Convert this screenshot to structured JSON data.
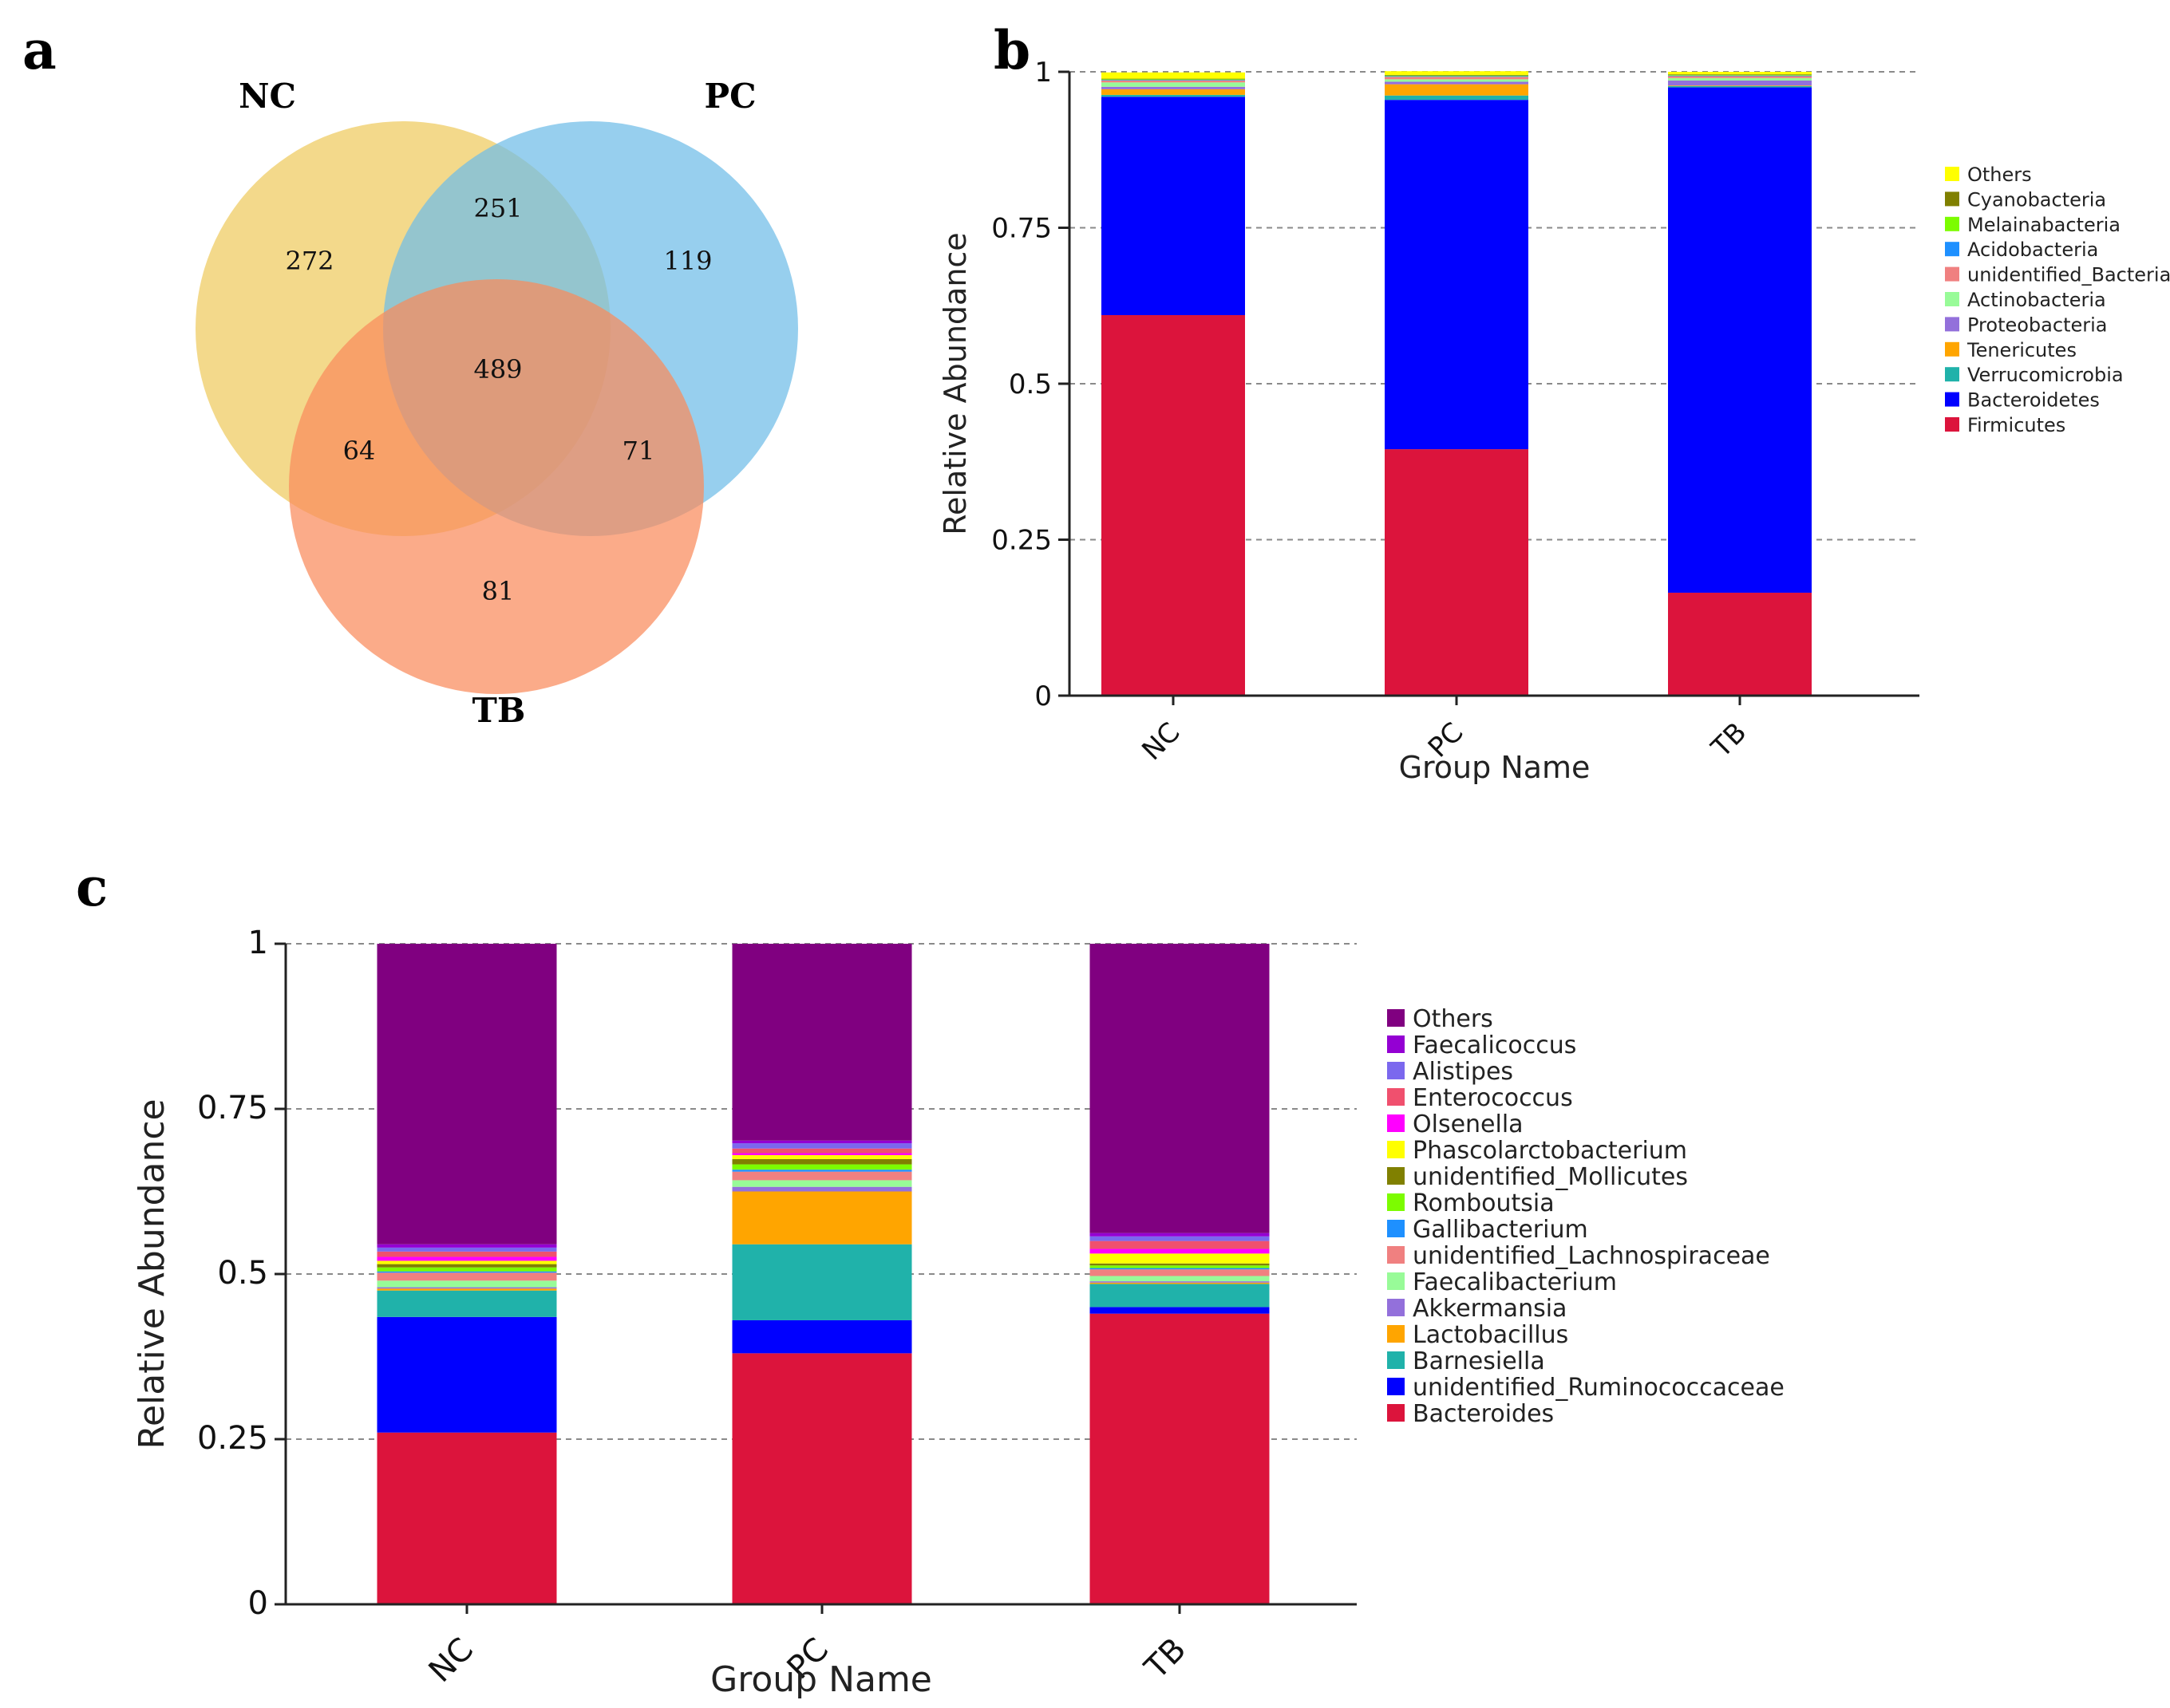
{
  "panels": {
    "a": "a",
    "b": "b",
    "c": "c"
  },
  "venn": {
    "sets": [
      {
        "name": "NC",
        "color": "#EFCB5E"
      },
      {
        "name": "PC",
        "color": "#6FBDE8"
      },
      {
        "name": "TB",
        "color": "#F98A5B"
      }
    ],
    "counts": {
      "nc_only": "272",
      "pc_only": "119",
      "tb_only": "81",
      "nc_pc": "251",
      "nc_tb": "64",
      "pc_tb": "71",
      "all": "489"
    }
  },
  "chart_data": [
    {
      "id": "b",
      "type": "bar",
      "stacked": true,
      "xlabel": "Group Name",
      "ylabel": "Relative Abundance",
      "ylim": [
        0,
        1
      ],
      "yticks": [
        "0",
        "0.25",
        "0.5",
        "0.75",
        "1"
      ],
      "categories": [
        "NC",
        "PC",
        "TB"
      ],
      "legend_position": "right",
      "grid": "dashed horizontal",
      "series": [
        {
          "name": "Firmicutes",
          "color": "#DC143C",
          "values": [
            0.61,
            0.395,
            0.165
          ]
        },
        {
          "name": "Bacteroidetes",
          "color": "#0000FF",
          "values": [
            0.35,
            0.56,
            0.81
          ]
        },
        {
          "name": "Verrucomicrobia",
          "color": "#20B2AA",
          "values": [
            0.003,
            0.007,
            0.002
          ]
        },
        {
          "name": "Tenericutes",
          "color": "#FFA500",
          "values": [
            0.009,
            0.018,
            0.001
          ]
        },
        {
          "name": "Proteobacteria",
          "color": "#9370DB",
          "values": [
            0.004,
            0.004,
            0.008
          ]
        },
        {
          "name": "Actinobacteria",
          "color": "#98FB98",
          "values": [
            0.007,
            0.004,
            0.004
          ]
        },
        {
          "name": "unidentified_Bacteria",
          "color": "#F08080",
          "values": [
            0.003,
            0.004,
            0.003
          ]
        },
        {
          "name": "Acidobacteria",
          "color": "#1E90FF",
          "values": [
            0.001,
            0.001,
            0.001
          ]
        },
        {
          "name": "Melainabacteria",
          "color": "#7CFC00",
          "values": [
            0.001,
            0.001,
            0.001
          ]
        },
        {
          "name": "Cyanobacteria",
          "color": "#808000",
          "values": [
            0.001,
            0.001,
            0.001
          ]
        },
        {
          "name": "Others",
          "color": "#FFFF00",
          "values": [
            0.01,
            0.006,
            0.004
          ]
        }
      ]
    },
    {
      "id": "c",
      "type": "bar",
      "stacked": true,
      "xlabel": "Group Name",
      "ylabel": "Relative Abundance",
      "ylim": [
        0,
        1
      ],
      "yticks": [
        "0",
        "0.25",
        "0.5",
        "0.75",
        "1"
      ],
      "categories": [
        "NC",
        "PC",
        "TB"
      ],
      "legend_position": "right",
      "grid": "dashed horizontal",
      "series": [
        {
          "name": "Bacteroides",
          "color": "#DC143C",
          "values": [
            0.26,
            0.38,
            0.44
          ]
        },
        {
          "name": "unidentified_Ruminococcaceae",
          "color": "#0000FF",
          "values": [
            0.175,
            0.05,
            0.01
          ]
        },
        {
          "name": "Barnesiella",
          "color": "#20B2AA",
          "values": [
            0.04,
            0.115,
            0.035
          ]
        },
        {
          "name": "Lactobacillus",
          "color": "#FFA500",
          "values": [
            0.003,
            0.08,
            0.002
          ]
        },
        {
          "name": "Akkermansia",
          "color": "#9370DB",
          "values": [
            0.002,
            0.007,
            0.002
          ]
        },
        {
          "name": "Faecalibacterium",
          "color": "#98FB98",
          "values": [
            0.01,
            0.01,
            0.008
          ]
        },
        {
          "name": "unidentified_Lachnospiraceae",
          "color": "#F08080",
          "values": [
            0.012,
            0.013,
            0.01
          ]
        },
        {
          "name": "Gallibacterium",
          "color": "#1E90FF",
          "values": [
            0.002,
            0.003,
            0.002
          ]
        },
        {
          "name": "Romboutsia",
          "color": "#7CFC00",
          "values": [
            0.006,
            0.008,
            0.004
          ]
        },
        {
          "name": "unidentified_Mollicutes",
          "color": "#808000",
          "values": [
            0.005,
            0.008,
            0.003
          ]
        },
        {
          "name": "Phascolarctobacterium",
          "color": "#FFFF00",
          "values": [
            0.005,
            0.006,
            0.015
          ]
        },
        {
          "name": "Olsenella",
          "color": "#FF00FF",
          "values": [
            0.006,
            0.003,
            0.007
          ]
        },
        {
          "name": "Enterococcus",
          "color": "#F0506E",
          "values": [
            0.008,
            0.007,
            0.012
          ]
        },
        {
          "name": "Alistipes",
          "color": "#7B68EE",
          "values": [
            0.006,
            0.008,
            0.007
          ]
        },
        {
          "name": "Faecalicoccus",
          "color": "#9400D3",
          "values": [
            0.005,
            0.004,
            0.005
          ]
        },
        {
          "name": "Others",
          "color": "#800080",
          "values": [
            0.455,
            0.298,
            0.438
          ]
        }
      ]
    }
  ]
}
